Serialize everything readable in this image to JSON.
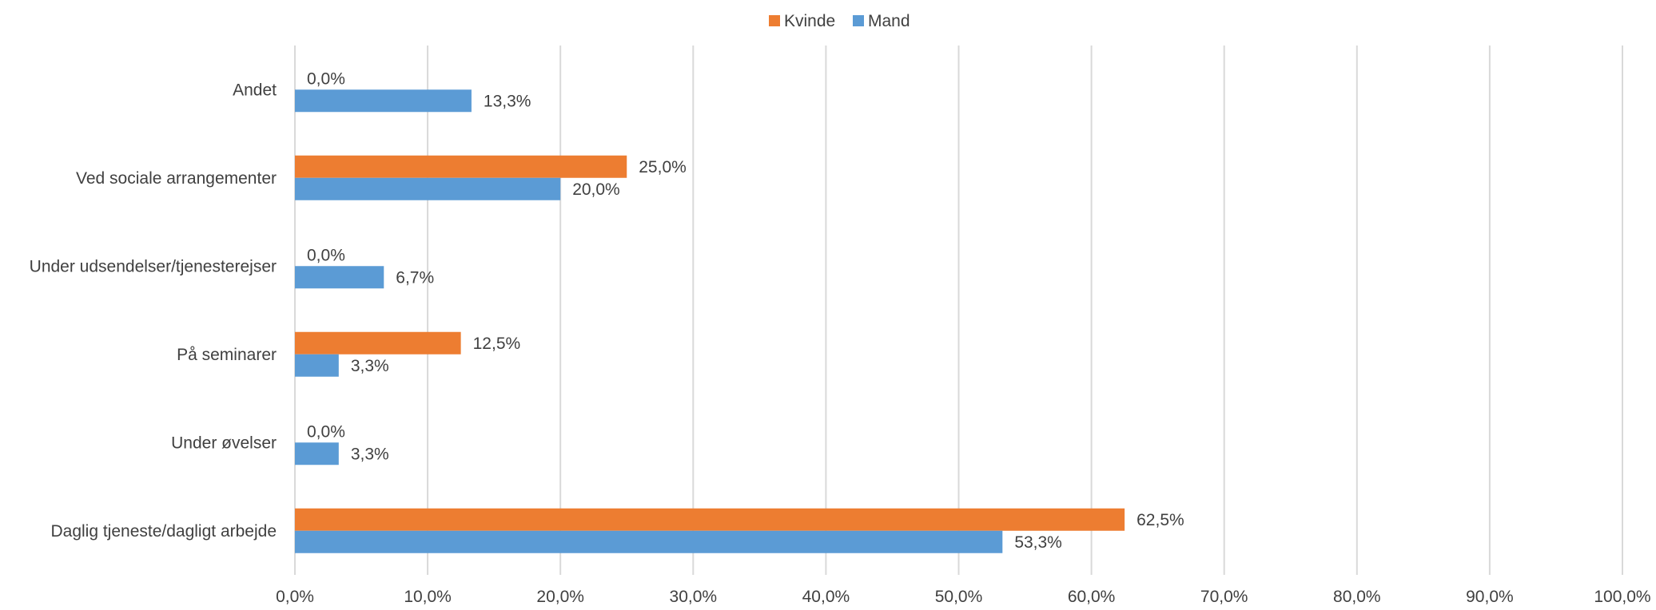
{
  "chart_data": {
    "type": "bar",
    "orientation": "horizontal",
    "categories": [
      "Andet",
      "Ved sociale arrangementer",
      "Under udsendelser/tjenesterejser",
      "På seminarer",
      "Under øvelser",
      "Daglig tjeneste/dagligt arbejde"
    ],
    "series": [
      {
        "name": "Kvinde",
        "color": "#ED7D31",
        "values": [
          0.0,
          25.0,
          0.0,
          12.5,
          0.0,
          62.5
        ],
        "labels": [
          "0,0%",
          "25,0%",
          "0,0%",
          "12,5%",
          "0,0%",
          "62,5%"
        ]
      },
      {
        "name": "Mand",
        "color": "#5B9BD5",
        "values": [
          13.3,
          20.0,
          6.7,
          3.3,
          3.3,
          53.3
        ],
        "labels": [
          "13,3%",
          "20,0%",
          "6,7%",
          "3,3%",
          "3,3%",
          "53,3%"
        ]
      }
    ],
    "xlim": [
      0,
      100
    ],
    "x_ticks": [
      0,
      10,
      20,
      30,
      40,
      50,
      60,
      70,
      80,
      90,
      100
    ],
    "x_tick_labels": [
      "0,0%",
      "10,0%",
      "20,0%",
      "30,0%",
      "40,0%",
      "50,0%",
      "60,0%",
      "70,0%",
      "80,0%",
      "90,0%",
      "100,0%"
    ],
    "grid": true,
    "legend_position": "top-center"
  }
}
